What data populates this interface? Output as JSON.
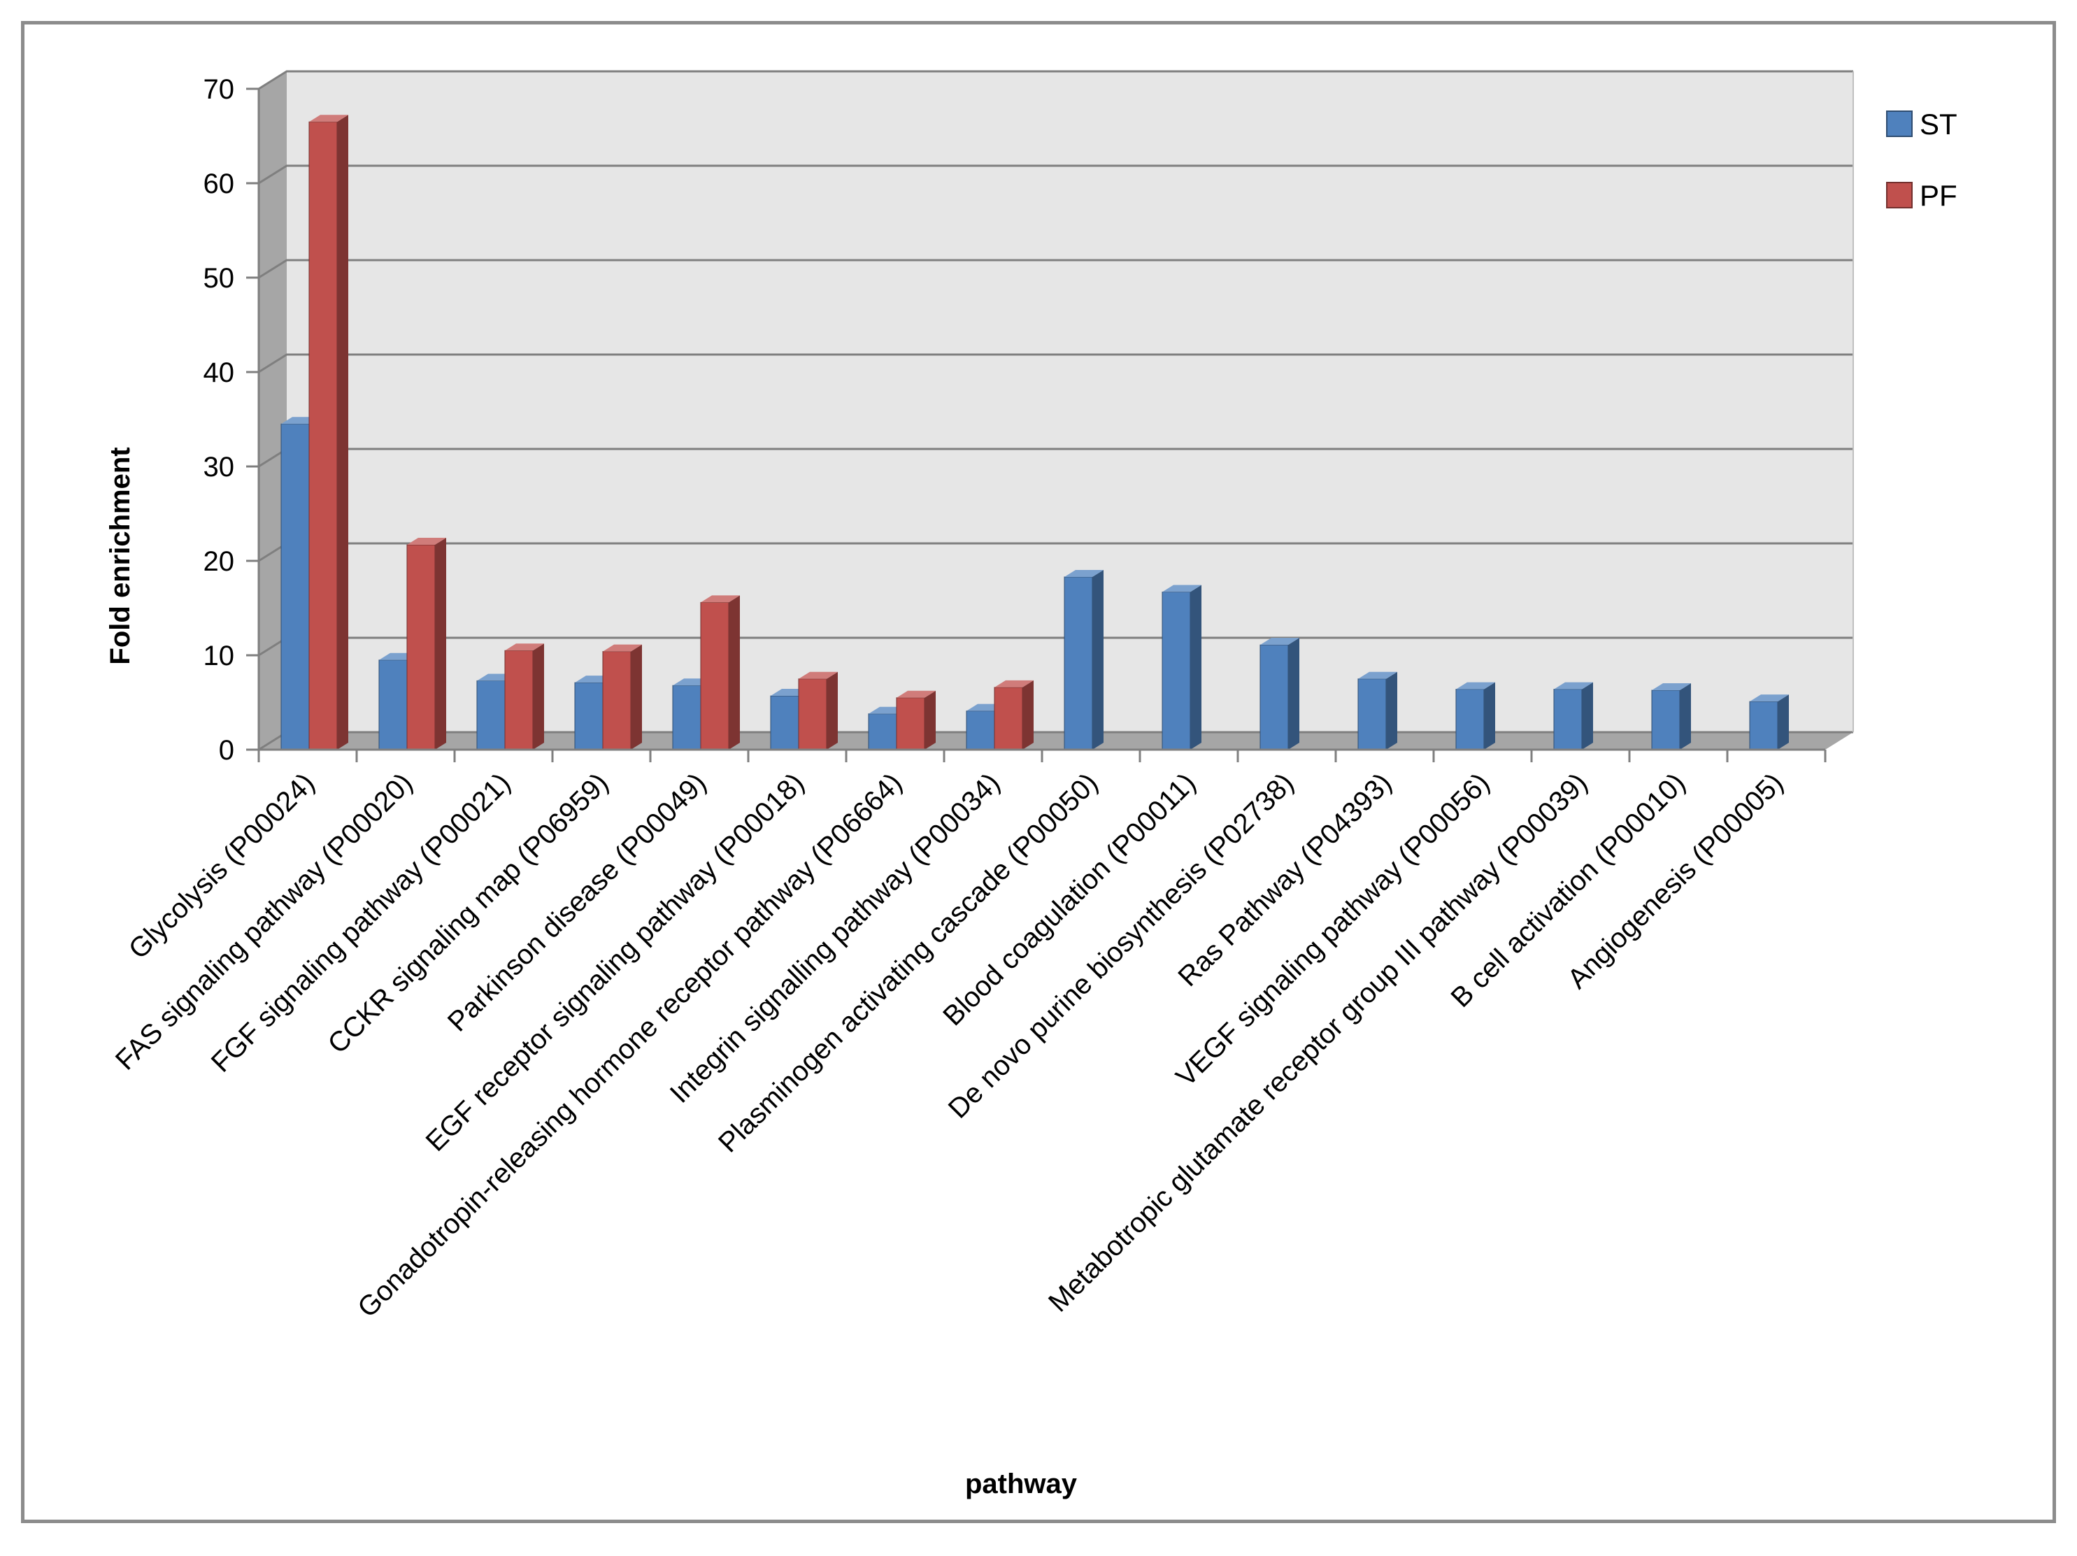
{
  "chart_data": {
    "type": "bar",
    "style": "3d-clustered-column",
    "xlabel": "pathway",
    "ylabel": "Fold enrichment",
    "ylim": [
      0,
      70
    ],
    "yticks": [
      0,
      10,
      20,
      30,
      40,
      50,
      60,
      70
    ],
    "grid": true,
    "legend_position": "right",
    "categories": [
      "Glycolysis (P00024)",
      "FAS signaling pathway (P00020)",
      "FGF signaling pathway (P00021)",
      "CCKR signaling map (P06959)",
      "Parkinson disease (P00049)",
      "EGF receptor signaling pathway (P00018)",
      "Gonadotropin-releasing hormone receptor pathway (P06664)",
      "Integrin signalling pathway (P00034)",
      "Plasminogen activating cascade (P00050)",
      "Blood coagulation (P00011)",
      "De novo purine biosynthesis (P02738)",
      "Ras Pathway (P04393)",
      "VEGF signaling pathway (P00056)",
      "Metabotropic glutamate receptor group III pathway (P00039)",
      "B cell activation (P00010)",
      "Angiogenesis (P00005)"
    ],
    "series": [
      {
        "name": "ST",
        "color": "#4f81bd",
        "values": [
          34.5,
          9.5,
          7.3,
          7.1,
          6.8,
          5.7,
          3.8,
          4.1,
          18.3,
          16.7,
          11.1,
          7.5,
          6.4,
          6.4,
          6.3,
          5.1
        ]
      },
      {
        "name": "PF",
        "color": "#c0504d",
        "values": [
          66.5,
          21.7,
          10.5,
          10.4,
          15.6,
          7.5,
          5.5,
          6.6,
          null,
          null,
          null,
          null,
          null,
          null,
          null,
          null
        ]
      }
    ]
  }
}
